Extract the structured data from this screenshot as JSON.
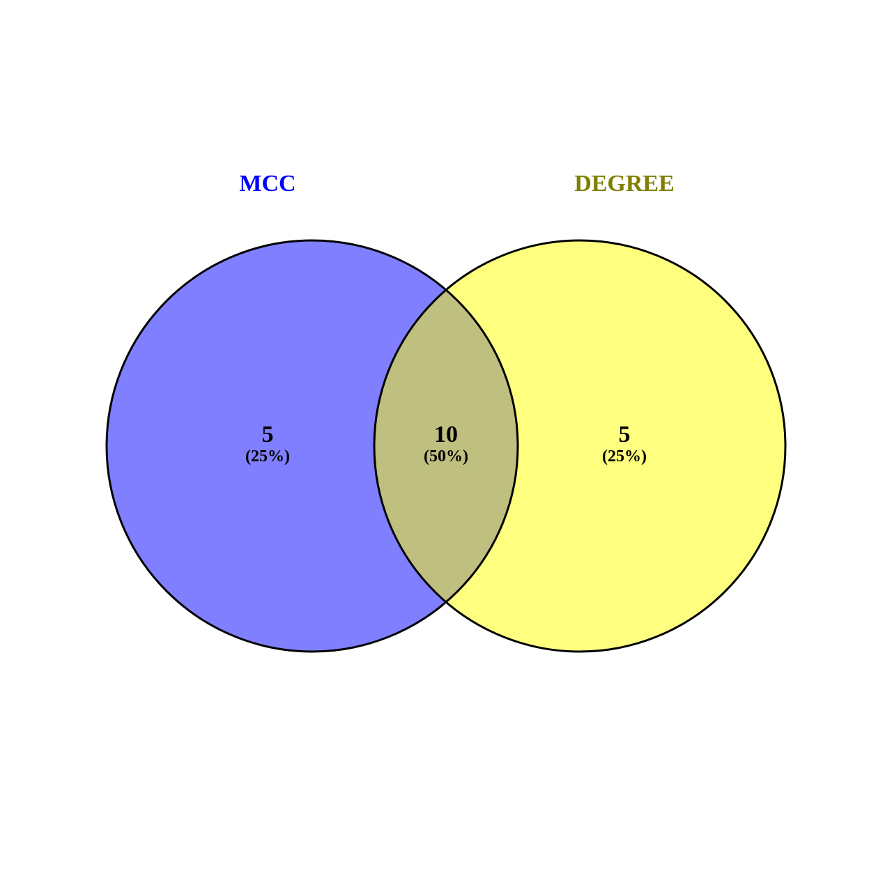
{
  "chart_data": {
    "type": "venn",
    "sets": [
      {
        "name": "MCC",
        "label_color": "#0000ff",
        "fill_color": "#7f7fff"
      },
      {
        "name": "DEGREE",
        "label_color": "#7f7f00",
        "fill_color": "#ffff7f"
      }
    ],
    "intersection_color": "#bfbf7f",
    "regions": [
      {
        "sets": [
          "MCC"
        ],
        "count": "5",
        "percent": "(25%)"
      },
      {
        "sets": [
          "MCC",
          "DEGREE"
        ],
        "count": "10",
        "percent": "(50%)"
      },
      {
        "sets": [
          "DEGREE"
        ],
        "count": "5",
        "percent": "(25%)"
      }
    ]
  }
}
